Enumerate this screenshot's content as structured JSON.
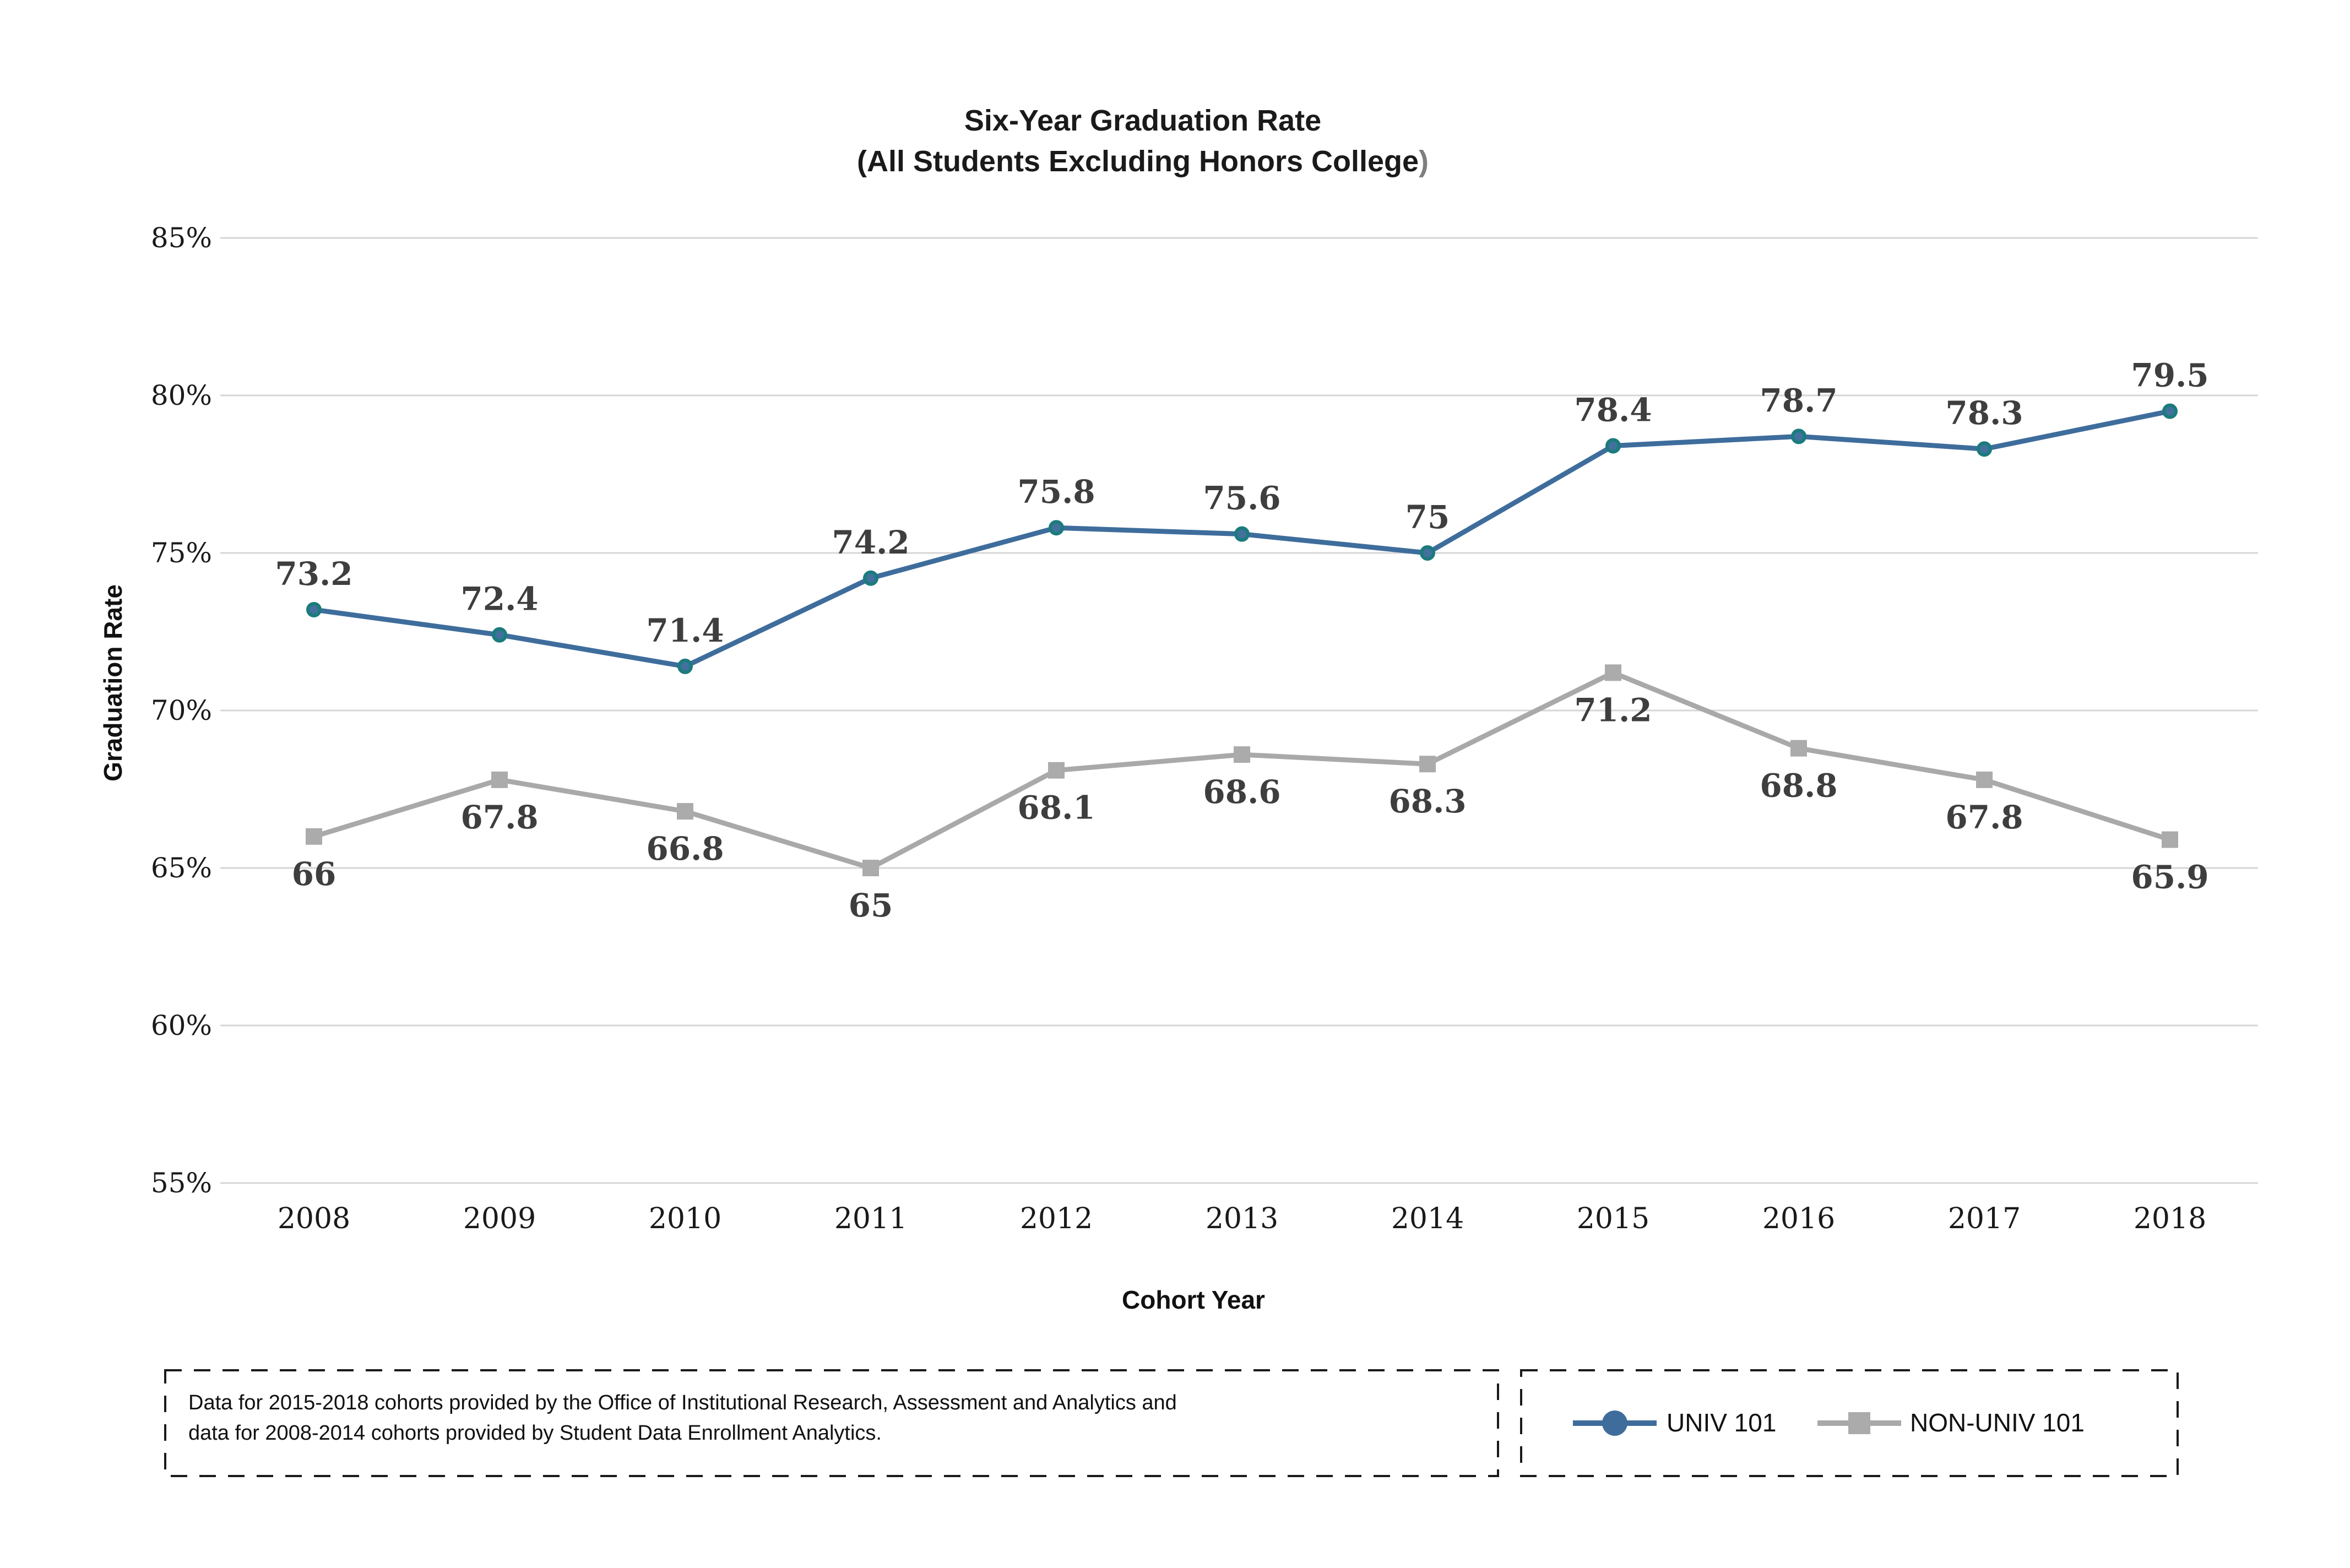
{
  "title": {
    "line1": "Six-Year Graduation Rate",
    "line2_main": "(All Students Excluding Honors College",
    "line2_paren": ")",
    "paren_color": "#7f7f7f"
  },
  "axes": {
    "x_title": "Cohort Year",
    "y_title": "Graduation Rate"
  },
  "chart_data": {
    "type": "line",
    "title": "Six-Year Graduation Rate (All Students Excluding Honors College)",
    "xlabel": "Cohort Year",
    "ylabel": "Graduation Rate",
    "categories": [
      "2008",
      "2009",
      "2010",
      "2011",
      "2012",
      "2013",
      "2014",
      "2015",
      "2016",
      "2017",
      "2018"
    ],
    "ylim": [
      55,
      85
    ],
    "y_ticks": [
      85,
      80,
      75,
      70,
      65,
      60,
      55
    ],
    "y_tick_suffix": "%",
    "grid": "horizontal",
    "gridline_color": "#d6d6d6",
    "data_label_color": "#3e3e3e",
    "tick_label_color": "#1a1a1a",
    "legend_position": "bottom-right",
    "series": [
      {
        "name": "UNIV 101",
        "color": "#3e6d9c",
        "marker": "circle",
        "marker_fill": "#41719c",
        "marker_stroke": "#1b7b7d",
        "label_position": "above",
        "values": [
          73.2,
          72.4,
          71.4,
          74.2,
          75.8,
          75.6,
          75,
          78.4,
          78.7,
          78.3,
          79.5
        ]
      },
      {
        "name": "NON-UNIV 101",
        "color": "#a9a9a9",
        "marker": "square",
        "marker_fill": "#ababab",
        "marker_stroke": "#a9a9a9",
        "label_position": "below",
        "values": [
          66,
          67.8,
          66.8,
          65,
          68.1,
          68.6,
          68.3,
          71.2,
          68.8,
          67.8,
          65.9
        ]
      }
    ]
  },
  "legend": {
    "items": [
      {
        "label": "UNIV 101"
      },
      {
        "label": "NON-UNIV 101"
      }
    ]
  },
  "footnote": {
    "line1": "Data for 2015-2018 cohorts provided by the Office of Institutional Research, Assessment and Analytics and",
    "line2": "data for 2008-2014 cohorts provided by Student Data Enrollment Analytics."
  }
}
